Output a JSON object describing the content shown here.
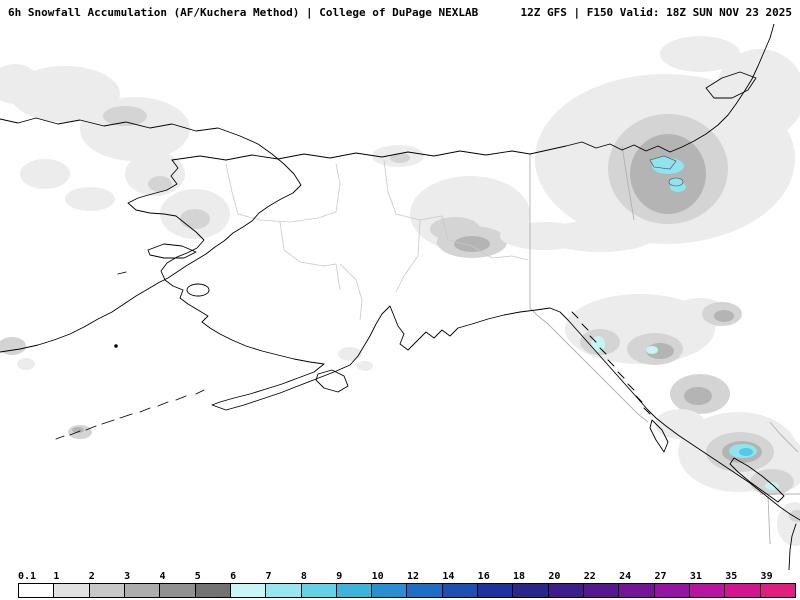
{
  "header": {
    "left_title": "6h Snowfall Accumulation (AF/Kuchera Method) | College of DuPage NEXLAB",
    "right_title": "12Z GFS | F150 Valid: 18Z SUN NOV 23 2025"
  },
  "colorbar": {
    "labels": [
      "0.1",
      "1",
      "2",
      "3",
      "4",
      "5",
      "6",
      "7",
      "8",
      "9",
      "10",
      "12",
      "14",
      "16",
      "18",
      "20",
      "22",
      "24",
      "27",
      "31",
      "35",
      "39"
    ],
    "colors": [
      "#ffffff",
      "#e1e1e1",
      "#c8c8c8",
      "#adadad",
      "#919191",
      "#737373",
      "#c8f5f5",
      "#96e7ee",
      "#64d2e6",
      "#3cb4dc",
      "#2890d2",
      "#1e6ec8",
      "#1e50b4",
      "#1e32a0",
      "#28288c",
      "#3c1e8c",
      "#55198f",
      "#731499",
      "#9614a3",
      "#b914a0",
      "#d21490",
      "#e11e7e"
    ]
  },
  "map": {
    "background": "#ffffff",
    "coastline_color": "#000000",
    "border_color": "#b0b0b0",
    "shading_palette": {
      "trace": "#ececec",
      "light": "#d4d4d4",
      "moderate": "#b4b4b4",
      "heavy_cyan": "#8fe4ef",
      "pale_cyan": "#c6f3f3",
      "intense_blue": "#55c8e8"
    },
    "depicts": "Gridded 6-hour snowfall shading over the Bering Sea, Alaska, Yukon and coastal British Columbia with heavier cyan maxima over northwest Canada, the Alaska panhandle and the BC Coast Mountains"
  }
}
